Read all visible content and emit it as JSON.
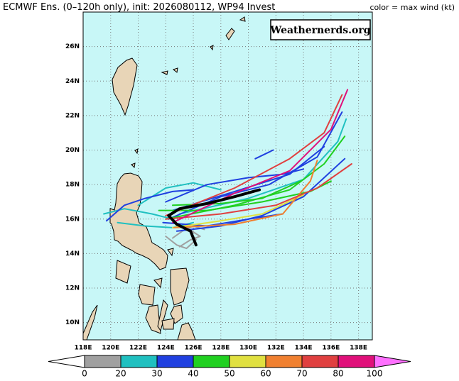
{
  "header": {
    "title": "ECMWF Ens. (0–120h only), init: 2026080112, WP94 Invest",
    "legend_note": "color = max wind (kt)"
  },
  "watermark": "Weathernerds.org",
  "map": {
    "xlim": [
      118,
      139
    ],
    "ylim": [
      9,
      28
    ],
    "xticks": [
      {
        "value": 118,
        "label": "118E"
      },
      {
        "value": 120,
        "label": "120E"
      },
      {
        "value": 122,
        "label": "122E"
      },
      {
        "value": 124,
        "label": "124E"
      },
      {
        "value": 126,
        "label": "126E"
      },
      {
        "value": 128,
        "label": "128E"
      },
      {
        "value": 130,
        "label": "130E"
      },
      {
        "value": 132,
        "label": "132E"
      },
      {
        "value": 134,
        "label": "134E"
      },
      {
        "value": 136,
        "label": "136E"
      },
      {
        "value": 138,
        "label": "138E"
      }
    ],
    "yticks": [
      {
        "value": 10,
        "label": "10N"
      },
      {
        "value": 12,
        "label": "12N"
      },
      {
        "value": 14,
        "label": "14N"
      },
      {
        "value": 16,
        "label": "16N"
      },
      {
        "value": 18,
        "label": "18N"
      },
      {
        "value": 20,
        "label": "20N"
      },
      {
        "value": 22,
        "label": "22N"
      },
      {
        "value": 24,
        "label": "24N"
      },
      {
        "value": 26,
        "label": "26N"
      }
    ],
    "tracks": [
      {
        "color": "#a0a0a0",
        "lon": [
          124,
          124.8,
          125.5,
          126.2,
          125.8
        ],
        "lat": [
          15,
          14.5,
          14.3,
          14.8,
          15.2
        ]
      },
      {
        "color": "#a0a0a0",
        "lon": [
          125,
          125.8,
          126.5,
          125.5
        ],
        "lat": [
          14.4,
          14.8,
          15,
          15.5
        ]
      },
      {
        "color": "#a0a0a0",
        "lon": [
          124.5,
          125.2,
          126,
          126.8
        ],
        "lat": [
          14.9,
          15.3,
          15.6,
          15.4
        ]
      },
      {
        "color": "#20c0c0",
        "lon": [
          119.5,
          121,
          123,
          124.5
        ],
        "lat": [
          16.3,
          16.6,
          16.3,
          16
        ]
      },
      {
        "color": "#20c0c0",
        "lon": [
          122,
          124,
          126,
          128
        ],
        "lat": [
          16.8,
          17.8,
          18.1,
          17.7
        ]
      },
      {
        "color": "#20c0c0",
        "lon": [
          120.5,
          122.5,
          124.5,
          126
        ],
        "lat": [
          15.8,
          15.6,
          15.5,
          15.8
        ]
      },
      {
        "color": "#20c0c0",
        "lon": [
          125,
          130,
          134,
          136.5,
          137.1
        ],
        "lat": [
          16.3,
          17.2,
          18.3,
          20.5,
          21.8
        ]
      },
      {
        "color": "#2040e0",
        "lon": [
          119.7,
          121,
          122.5,
          124.5,
          126
        ],
        "lat": [
          15.9,
          16.8,
          17.2,
          17.6,
          17.7
        ]
      },
      {
        "color": "#2040e0",
        "lon": [
          124.2,
          128,
          131.5,
          135,
          136.8
        ],
        "lat": [
          16,
          17.3,
          18,
          19.6,
          22.2
        ]
      },
      {
        "color": "#2040e0",
        "lon": [
          124.5,
          129,
          133,
          135.5
        ],
        "lat": [
          16.5,
          17.6,
          18.6,
          20.2
        ]
      },
      {
        "color": "#2040e0",
        "lon": [
          124.8,
          128,
          131,
          134,
          137
        ],
        "lat": [
          15.3,
          15.6,
          16.2,
          17.3,
          19.5
        ]
      },
      {
        "color": "#2040e0",
        "lon": [
          130.5,
          131.8
        ],
        "lat": [
          19.5,
          20
        ]
      },
      {
        "color": "#2040e0",
        "lon": [
          124,
          127,
          130,
          132.5,
          134
        ],
        "lat": [
          17,
          18,
          18.4,
          18.6,
          18.9
        ]
      },
      {
        "color": "#2040e0",
        "lon": [
          123.8,
          127,
          130,
          132.5
        ],
        "lat": [
          15.8,
          15.6,
          16,
          16.3
        ]
      },
      {
        "color": "#20d020",
        "lon": [
          124,
          129,
          133,
          135.5,
          137
        ],
        "lat": [
          16,
          16.8,
          17.7,
          19.2,
          20.8
        ]
      },
      {
        "color": "#20d020",
        "lon": [
          124.5,
          128,
          131,
          133.8
        ],
        "lat": [
          16.8,
          16.9,
          17.2,
          18.2
        ]
      },
      {
        "color": "#20d020",
        "lon": [
          123.5,
          127,
          131,
          134.5,
          136
        ],
        "lat": [
          16.5,
          16.5,
          17,
          17.6,
          18.2
        ]
      },
      {
        "color": "#e0e040",
        "lon": [
          124.5,
          128,
          131,
          134
        ],
        "lat": [
          15.5,
          15.9,
          16.3,
          17.4
        ]
      },
      {
        "color": "#f08030",
        "lon": [
          124.6,
          129,
          132.5,
          134.5,
          135
        ],
        "lat": [
          15.5,
          15.7,
          16.3,
          18.2,
          19.4
        ]
      },
      {
        "color": "#e04040",
        "lon": [
          124,
          128,
          132,
          135,
          137.5
        ],
        "lat": [
          16,
          16.3,
          16.8,
          17.8,
          19.2
        ]
      },
      {
        "color": "#e04040",
        "lon": [
          124,
          129,
          133,
          135.5,
          136.8
        ],
        "lat": [
          16.2,
          17.8,
          19.5,
          21,
          23.2
        ]
      },
      {
        "color": "#e0107a",
        "lon": [
          124.5,
          129,
          133,
          136,
          137.2
        ],
        "lat": [
          15.8,
          17.5,
          18.8,
          21.2,
          23.5
        ]
      }
    ],
    "mean_track": {
      "color": "#000000",
      "lon": [
        126.2,
        125.8,
        124.8,
        124.2,
        125,
        127,
        129,
        130.8
      ],
      "lat": [
        14.5,
        15.3,
        15.7,
        16.2,
        16.6,
        16.9,
        17.3,
        17.7
      ]
    }
  },
  "colorbar": {
    "bounds": [
      0,
      20,
      30,
      40,
      50,
      60,
      70,
      80,
      100
    ],
    "colors": [
      "#a0a0a0",
      "#20c0c0",
      "#2040e0",
      "#20d020",
      "#e0e040",
      "#f08030",
      "#e04040",
      "#e0107a"
    ],
    "under_color": "#ffffff",
    "over_color": "#ff70ff"
  }
}
